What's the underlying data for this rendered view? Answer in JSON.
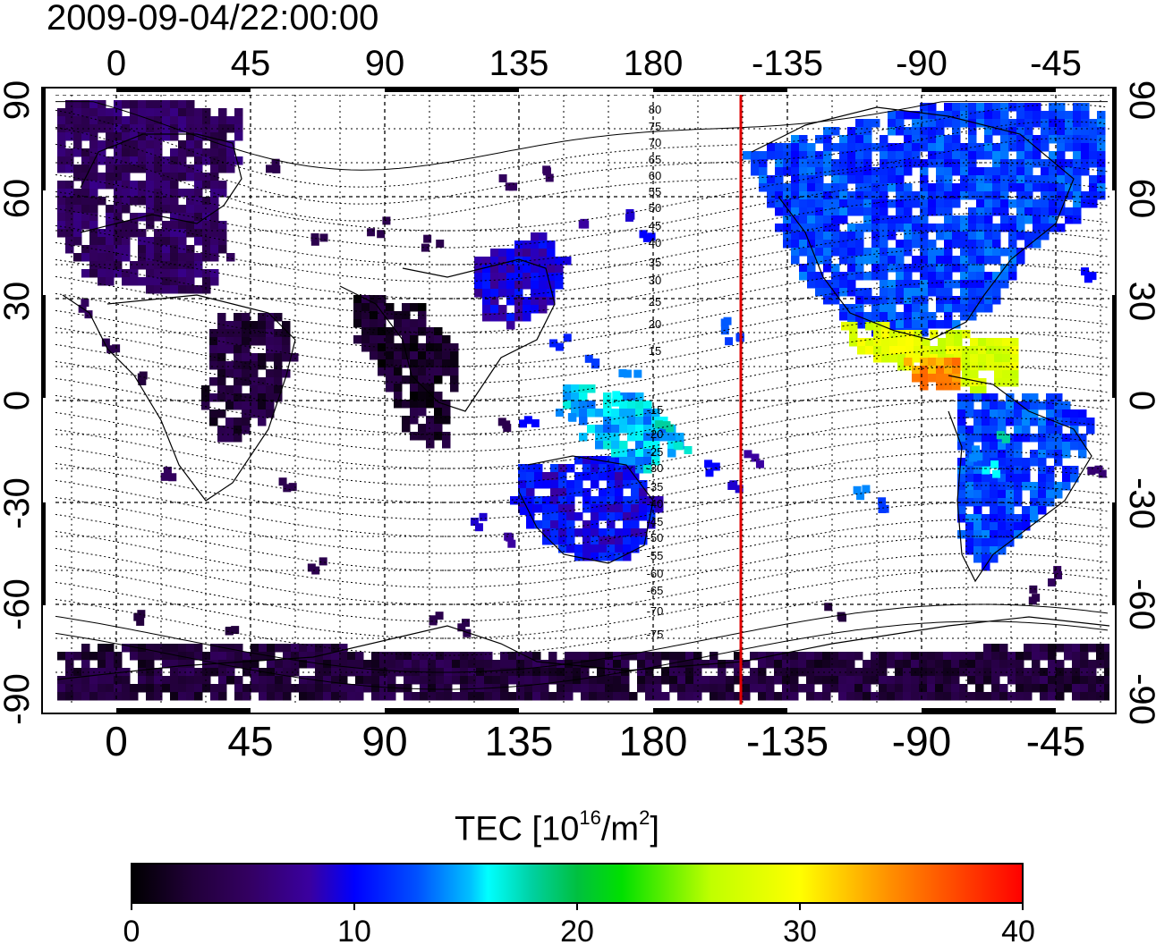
{
  "title": "2009-09-04/22:00:00",
  "axes": {
    "lon_ticks": [
      "0",
      "45",
      "90",
      "135",
      "180",
      "-135",
      "-90",
      "-45"
    ],
    "lat_ticks_left": [
      "90",
      "60",
      "30",
      "0",
      "-30",
      "-60",
      "-90"
    ],
    "lat_ticks_right": [
      "90",
      "60",
      "30",
      "0",
      "-30",
      "-60",
      "-90"
    ]
  },
  "magnetic_latitude_labels": [
    "80",
    "75",
    "70",
    "65",
    "60",
    "55",
    "50",
    "45",
    "40",
    "35",
    "30",
    "25",
    "20",
    "15",
    "-15",
    "-20",
    "-25",
    "-30",
    "-35",
    "-40",
    "-45",
    "-50",
    "-55",
    "-60",
    "-65",
    "-70",
    "-75"
  ],
  "marker_line": {
    "longitude": -150,
    "color": "#e00000"
  },
  "colorbar": {
    "title_main": "TEC  [10",
    "title_sup1": "16",
    "title_mid": "/m",
    "title_sup2": "2",
    "title_end": "]",
    "min": 0,
    "max": 40,
    "ticks": [
      "0",
      "10",
      "20",
      "30",
      "40"
    ],
    "colors": [
      "#000000",
      "#330050",
      "#3a0090",
      "#0000ff",
      "#0080ff",
      "#00ffff",
      "#00c060",
      "#00ff00",
      "#ffff00",
      "#ff8000",
      "#ff0000"
    ]
  },
  "tec_regions": [
    {
      "name": "europe-asia-north",
      "value": 5
    },
    {
      "name": "africa",
      "value": 3
    },
    {
      "name": "india-se-asia",
      "value": 2
    },
    {
      "name": "east-asia",
      "value": 9
    },
    {
      "name": "australia",
      "value": 10
    },
    {
      "name": "north-pacific-islands",
      "value": 15
    },
    {
      "name": "north-america",
      "value": 12
    },
    {
      "name": "central-america",
      "value": 28
    },
    {
      "name": "equator-pacific-peak",
      "value": 34
    },
    {
      "name": "south-america",
      "value": 12
    },
    {
      "name": "antarctica",
      "value": 3
    }
  ]
}
